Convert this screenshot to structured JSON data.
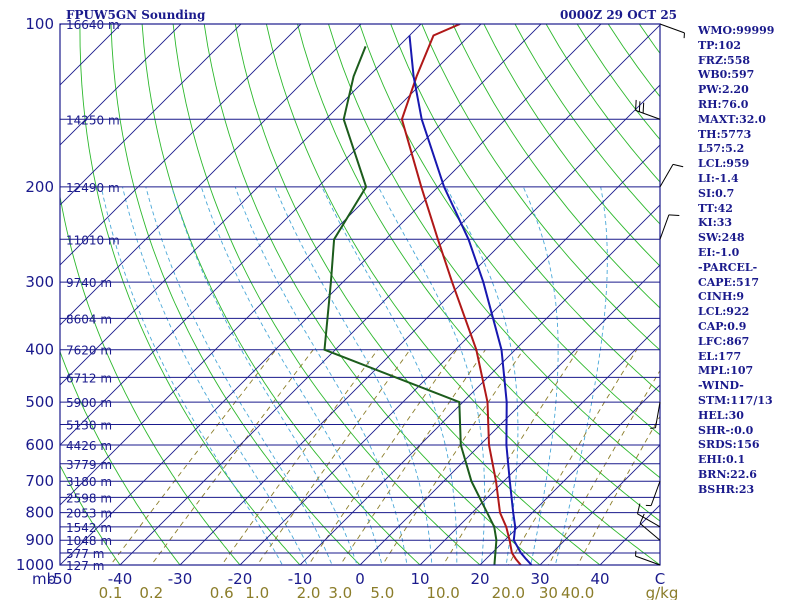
{
  "header": {
    "left_title": "FPUW5GN Sounding",
    "right_title": "0000Z 29 OCT 25"
  },
  "indices": [
    "WMO:99999",
    "TP:102",
    "FRZ:558",
    "WB0:597",
    "PW:2.20",
    "RH:76.0",
    "MAXT:32.0",
    "TH:5773",
    "L57:5.2",
    "LCL:959",
    "LI:-1.4",
    "SI:0.7",
    "TT:42",
    "KI:33",
    "SW:248",
    "EI:-1.0",
    "-PARCEL-",
    "CAPE:517",
    "CINH:9",
    "LCL:922",
    "CAP:0.9",
    "LFC:867",
    "EL:177",
    "MPL:107",
    "-WIND-",
    "STM:117/13",
    "HEL:30",
    "SHR-:0.0",
    "SRDS:156",
    "EHI:0.1",
    "BRN:22.6",
    "BSHR:23"
  ],
  "colors": {
    "frame": "#1a1a8c",
    "isobar": "#1a1a8c",
    "isotherm": "#1a1a8c",
    "dry_adiabat": "#2db82d",
    "moist_adiabat": "#4aa8d8",
    "mixing_ratio": "#8b7d2a",
    "temperature": "#b01818",
    "dewpoint": "#1c5c1c",
    "parcel": "#1818b0",
    "wind": "#000000"
  },
  "chart_data": {
    "type": "skew-t",
    "p_range": [
      1000,
      100
    ],
    "t_range": [
      -50,
      50
    ],
    "pressure_labels": [
      1000,
      900,
      800,
      700,
      600,
      500,
      400,
      300,
      200,
      100
    ],
    "temperature_ticks": [
      -50,
      -40,
      -30,
      -20,
      -10,
      0,
      10,
      20,
      30,
      40
    ],
    "p_axis_unit": "mb",
    "t_axis_unit": "C",
    "mixing_ratio_labels": [
      "0.1",
      "0.2",
      "0.6",
      "1.0",
      "2.0",
      "3.0",
      "5.0",
      "10.0",
      "20.0",
      "30",
      "40.0"
    ],
    "mixing_ratio_unit": "g/kg",
    "height_labels": [
      {
        "p": 100,
        "h": "16640 m"
      },
      {
        "p": 150,
        "h": "14250 m"
      },
      {
        "p": 200,
        "h": "12490 m"
      },
      {
        "p": 250,
        "h": "11010 m"
      },
      {
        "p": 300,
        "h": "9740 m"
      },
      {
        "p": 350,
        "h": "8604 m"
      },
      {
        "p": 400,
        "h": "7620 m"
      },
      {
        "p": 450,
        "h": "6712 m"
      },
      {
        "p": 500,
        "h": "5900 m"
      },
      {
        "p": 550,
        "h": "5130 m"
      },
      {
        "p": 600,
        "h": "4426 m"
      },
      {
        "p": 650,
        "h": "3779 m"
      },
      {
        "p": 700,
        "h": "3180 m"
      },
      {
        "p": 750,
        "h": "2598 m"
      },
      {
        "p": 800,
        "h": "2053 m"
      },
      {
        "p": 850,
        "h": "1542 m"
      },
      {
        "p": 900,
        "h": "1048 m"
      },
      {
        "p": 950,
        "h": "577 m"
      },
      {
        "p": 1000,
        "h": "127 m"
      }
    ],
    "series": [
      {
        "name": "temperature",
        "points": [
          {
            "p": 1000,
            "t": 26.8
          },
          {
            "p": 975,
            "t": 25.0
          },
          {
            "p": 950,
            "t": 23.3
          },
          {
            "p": 900,
            "t": 20.8
          },
          {
            "p": 850,
            "t": 18.0
          },
          {
            "p": 800,
            "t": 14.6
          },
          {
            "p": 700,
            "t": 8.7
          },
          {
            "p": 600,
            "t": 1.5
          },
          {
            "p": 500,
            "t": -5.9
          },
          {
            "p": 400,
            "t": -16.5
          },
          {
            "p": 300,
            "t": -31.8
          },
          {
            "p": 250,
            "t": -41.3
          },
          {
            "p": 200,
            "t": -52.8
          },
          {
            "p": 150,
            "t": -67.3
          },
          {
            "p": 125,
            "t": -72.0
          },
          {
            "p": 105,
            "t": -76.0
          },
          {
            "p": 100,
            "t": -73.5
          }
        ]
      },
      {
        "name": "dewpoint",
        "points": [
          {
            "p": 1000,
            "t": 22.4
          },
          {
            "p": 900,
            "t": 18.6
          },
          {
            "p": 850,
            "t": 16.0
          },
          {
            "p": 700,
            "t": 4.6
          },
          {
            "p": 600,
            "t": -3.2
          },
          {
            "p": 500,
            "t": -10.6
          },
          {
            "p": 400,
            "t": -41.8
          },
          {
            "p": 300,
            "t": -52.0
          },
          {
            "p": 250,
            "t": -58.6
          },
          {
            "p": 200,
            "t": -62.0
          },
          {
            "p": 150,
            "t": -77.0
          },
          {
            "p": 125,
            "t": -82.5
          },
          {
            "p": 110,
            "t": -85.5
          }
        ]
      },
      {
        "name": "parcel",
        "points": [
          {
            "p": 1000,
            "t": 28.6
          },
          {
            "p": 975,
            "t": 26.7
          },
          {
            "p": 950,
            "t": 24.8
          },
          {
            "p": 900,
            "t": 21.5
          },
          {
            "p": 850,
            "t": 19.5
          },
          {
            "p": 800,
            "t": 16.8
          },
          {
            "p": 700,
            "t": 11.0
          },
          {
            "p": 600,
            "t": 4.4
          },
          {
            "p": 500,
            "t": -2.7
          },
          {
            "p": 400,
            "t": -12.3
          },
          {
            "p": 300,
            "t": -26.6
          },
          {
            "p": 250,
            "t": -36.2
          },
          {
            "p": 200,
            "t": -49.0
          },
          {
            "p": 150,
            "t": -64.0
          },
          {
            "p": 125,
            "t": -72.5
          },
          {
            "p": 105,
            "t": -80.0
          }
        ]
      }
    ],
    "winds": [
      {
        "p": 1000,
        "dir": 290,
        "spd": 5
      },
      {
        "p": 900,
        "dir": 310,
        "spd": 10
      },
      {
        "p": 850,
        "dir": 300,
        "spd": 10
      },
      {
        "p": 700,
        "dir": 200,
        "spd": 5
      },
      {
        "p": 500,
        "dir": 190,
        "spd": 5
      },
      {
        "p": 250,
        "dir": 20,
        "spd": 10
      },
      {
        "p": 200,
        "dir": 30,
        "spd": 10
      },
      {
        "p": 150,
        "dir": 290,
        "spd": 30
      },
      {
        "p": 100,
        "dir": 110,
        "spd": 5
      }
    ]
  }
}
